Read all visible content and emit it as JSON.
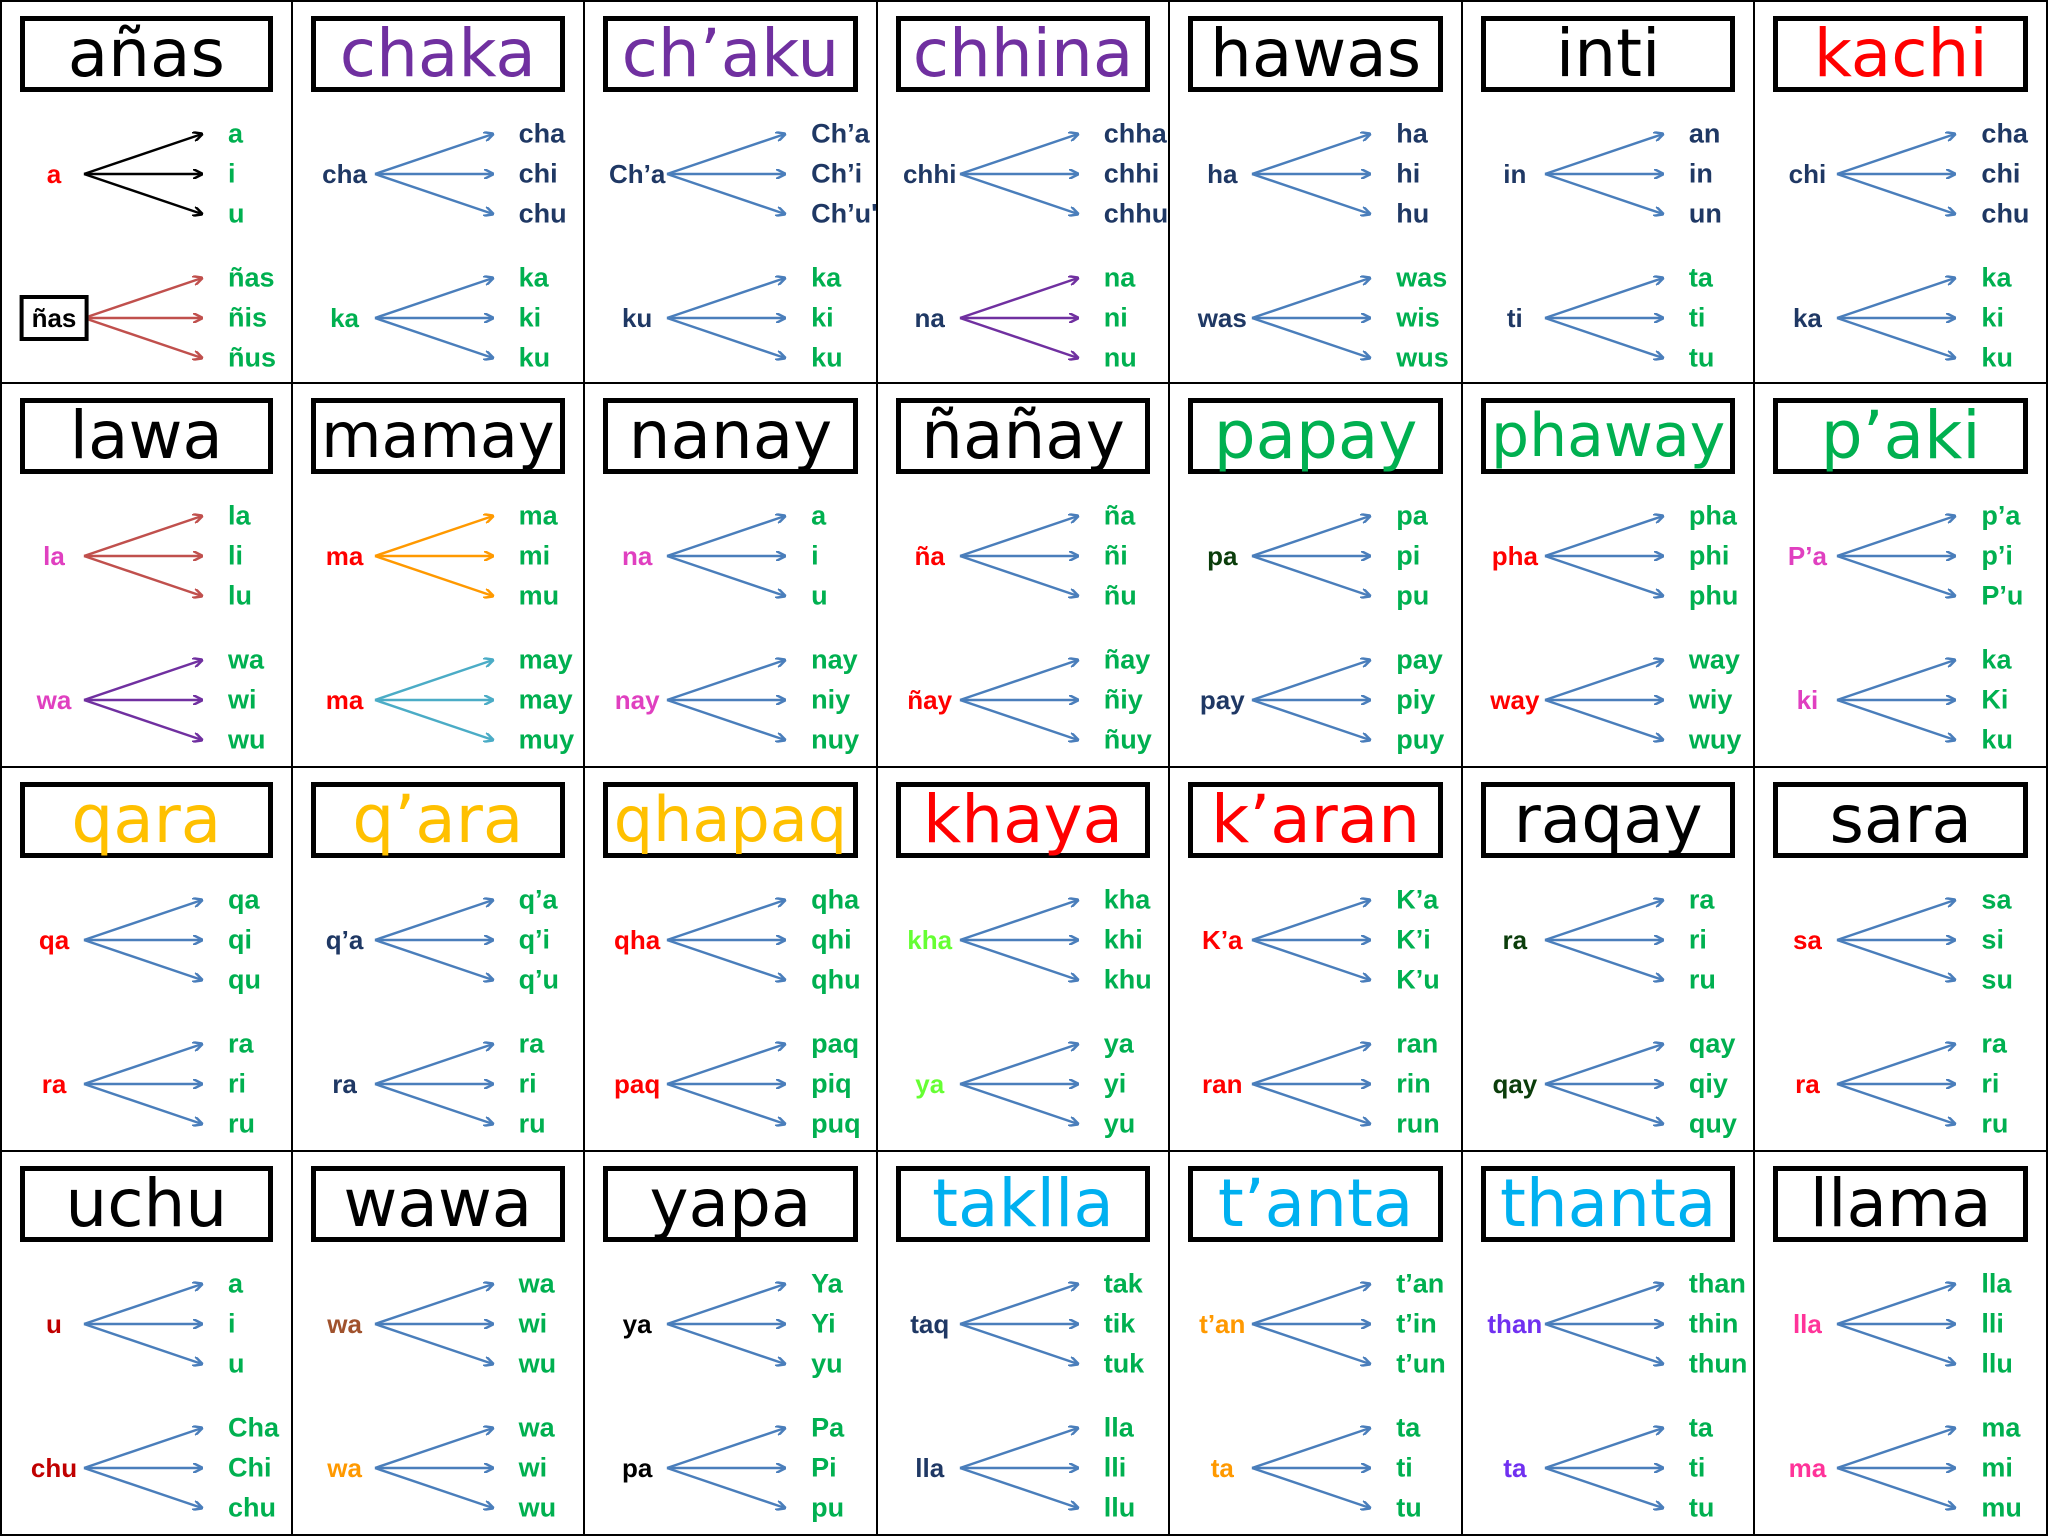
{
  "colors": {
    "black": "#000000",
    "purple": "#7030a0",
    "red": "#ff0000",
    "green": "#00b050",
    "navy": "#1f3864",
    "blue_arrow": "#4a7ebb",
    "gold": "#ffc000",
    "cyan": "#00b0f0",
    "magenta": "#e040c0",
    "dark_green": "#0b3d0b",
    "lime": "#66ff33",
    "brown": "#a0522d",
    "orange": "#ff9900",
    "violet": "#7030f0",
    "pink": "#ff3399",
    "dark_red": "#c00000"
  },
  "cards": [
    {
      "title": "añas",
      "title_color": "black",
      "groups": [
        {
          "root": "a",
          "root_color": "red",
          "arrow_color": "black",
          "syllables": [
            "a",
            "i",
            "u"
          ],
          "syl_color": "green"
        },
        {
          "root": "ñas",
          "root_color": "black",
          "root_boxed": true,
          "arrow_color": "brownred",
          "syllables": [
            "ñas",
            "ñis",
            "ñus"
          ],
          "syl_color": "green"
        }
      ]
    },
    {
      "title": "chaka",
      "title_color": "purple",
      "groups": [
        {
          "root": "cha",
          "root_color": "navy",
          "arrow_color": "blue",
          "syllables": [
            "cha",
            "chi",
            "chu"
          ],
          "syl_color": "navy"
        },
        {
          "root": "ka",
          "root_color": "green",
          "arrow_color": "blue",
          "syllables": [
            "ka",
            "ki",
            "ku"
          ],
          "syl_color": "green"
        }
      ]
    },
    {
      "title": "ch’aku",
      "title_color": "purple",
      "groups": [
        {
          "root": "Ch’a",
          "root_color": "navy",
          "arrow_color": "blue",
          "syllables": [
            "Ch’a",
            "Ch’i",
            "Ch’u'"
          ],
          "syl_color": "navy"
        },
        {
          "root": "ku",
          "root_color": "navy",
          "arrow_color": "blue",
          "syllables": [
            "ka",
            "ki",
            "ku"
          ],
          "syl_color": "green"
        }
      ]
    },
    {
      "title": "chhina",
      "title_color": "purple",
      "groups": [
        {
          "root": "chhi",
          "root_color": "navy",
          "arrow_color": "blue",
          "syllables": [
            "chha",
            "chhi",
            "chhu"
          ],
          "syl_color": "navy"
        },
        {
          "root": "na",
          "root_color": "navy",
          "arrow_color": "purple",
          "syllables": [
            "na",
            "ni",
            "nu"
          ],
          "syl_color": "green"
        }
      ]
    },
    {
      "title": "hawas",
      "title_color": "black",
      "groups": [
        {
          "root": "ha",
          "root_color": "navy",
          "arrow_color": "blue",
          "syllables": [
            "ha",
            "hi",
            "hu"
          ],
          "syl_color": "navy"
        },
        {
          "root": "was",
          "root_color": "navy",
          "arrow_color": "blue",
          "syllables": [
            "was",
            "wis",
            "wus"
          ],
          "syl_color": "green"
        }
      ]
    },
    {
      "title": "inti",
      "title_color": "black",
      "groups": [
        {
          "root": "in",
          "root_color": "navy",
          "arrow_color": "blue",
          "syllables": [
            "an",
            "in",
            "un"
          ],
          "syl_color": "navy"
        },
        {
          "root": "ti",
          "root_color": "navy",
          "arrow_color": "blue",
          "syllables": [
            "ta",
            "ti",
            "tu"
          ],
          "syl_color": "green"
        }
      ]
    },
    {
      "title": "kachi",
      "title_color": "red",
      "groups": [
        {
          "root": "chi",
          "root_color": "navy",
          "arrow_color": "blue",
          "syllables": [
            "cha",
            "chi",
            "chu"
          ],
          "syl_color": "navy"
        },
        {
          "root": "ka",
          "root_color": "navy",
          "arrow_color": "blue",
          "syllables": [
            "ka",
            "ki",
            "ku"
          ],
          "syl_color": "green"
        }
      ]
    },
    {
      "title": "lawa",
      "title_color": "black",
      "groups": [
        {
          "root": "la",
          "root_color": "magenta",
          "arrow_color": "brownred",
          "syllables": [
            "la",
            "li",
            "lu"
          ],
          "syl_color": "green"
        },
        {
          "root": "wa",
          "root_color": "magenta",
          "arrow_color": "purple",
          "syllables": [
            "wa",
            "wi",
            "wu"
          ],
          "syl_color": "green"
        }
      ]
    },
    {
      "title": "mamay",
      "title_color": "black",
      "groups": [
        {
          "root": "ma",
          "root_color": "red",
          "arrow_color": "orange",
          "syllables": [
            "ma",
            "mi",
            "mu"
          ],
          "syl_color": "green"
        },
        {
          "root": "ma",
          "root_color": "red",
          "arrow_color": "teal",
          "syllables": [
            "may",
            "may",
            "muy"
          ],
          "syl_color": "green"
        }
      ]
    },
    {
      "title": "nanay",
      "title_color": "black",
      "groups": [
        {
          "root": "na",
          "root_color": "magenta",
          "arrow_color": "blue",
          "syllables": [
            "a",
            "i",
            "u"
          ],
          "syl_color": "green"
        },
        {
          "root": "nay",
          "root_color": "magenta",
          "arrow_color": "blue",
          "syllables": [
            "nay",
            "niy",
            "nuy"
          ],
          "syl_color": "green"
        }
      ]
    },
    {
      "title": "ñañay",
      "title_color": "black",
      "groups": [
        {
          "root": "ña",
          "root_color": "red",
          "arrow_color": "blue",
          "syllables": [
            "ña",
            "ñi",
            "ñu"
          ],
          "syl_color": "green"
        },
        {
          "root": "ñay",
          "root_color": "red",
          "arrow_color": "blue",
          "syllables": [
            "ñay",
            "ñiy",
            "ñuy"
          ],
          "syl_color": "green"
        }
      ]
    },
    {
      "title": "papay",
      "title_color": "green",
      "groups": [
        {
          "root": "pa",
          "root_color": "dark_green",
          "arrow_color": "blue",
          "syllables": [
            "pa",
            "pi",
            "pu"
          ],
          "syl_color": "green"
        },
        {
          "root": "pay",
          "root_color": "navy",
          "arrow_color": "blue",
          "syllables": [
            "pay",
            "piy",
            "puy"
          ],
          "syl_color": "green"
        }
      ]
    },
    {
      "title": "phaway",
      "title_color": "green",
      "groups": [
        {
          "root": "pha",
          "root_color": "red",
          "arrow_color": "blue",
          "syllables": [
            "pha",
            "phi",
            "phu"
          ],
          "syl_color": "green"
        },
        {
          "root": "way",
          "root_color": "red",
          "arrow_color": "blue",
          "syllables": [
            "way",
            "wiy",
            "wuy"
          ],
          "syl_color": "green"
        }
      ]
    },
    {
      "title": "p’aki",
      "title_color": "green",
      "groups": [
        {
          "root": "P’a",
          "root_color": "magenta",
          "arrow_color": "blue",
          "syllables": [
            "p’a",
            "p’i",
            "P’u"
          ],
          "syl_color": "green"
        },
        {
          "root": "ki",
          "root_color": "magenta",
          "arrow_color": "blue",
          "syllables": [
            "ka",
            "Ki",
            "ku"
          ],
          "syl_color": "green"
        }
      ]
    },
    {
      "title": "qara",
      "title_color": "gold",
      "groups": [
        {
          "root": "qa",
          "root_color": "red",
          "arrow_color": "blue",
          "syllables": [
            "qa",
            "qi",
            "qu"
          ],
          "syl_color": "green"
        },
        {
          "root": "ra",
          "root_color": "red",
          "arrow_color": "blue",
          "syllables": [
            "ra",
            "ri",
            "ru"
          ],
          "syl_color": "green"
        }
      ]
    },
    {
      "title": "q’ara",
      "title_color": "gold",
      "groups": [
        {
          "root": "q’a",
          "root_color": "navy",
          "arrow_color": "blue",
          "syllables": [
            "q’a",
            "q’i",
            "q’u"
          ],
          "syl_color": "green"
        },
        {
          "root": "ra",
          "root_color": "navy",
          "arrow_color": "blue",
          "syllables": [
            "ra",
            "ri",
            "ru"
          ],
          "syl_color": "green"
        }
      ]
    },
    {
      "title": "qhapaq",
      "title_color": "gold",
      "groups": [
        {
          "root": "qha",
          "root_color": "red",
          "arrow_color": "blue",
          "syllables": [
            "qha",
            "qhi",
            "qhu"
          ],
          "syl_color": "green"
        },
        {
          "root": "paq",
          "root_color": "red",
          "arrow_color": "blue",
          "syllables": [
            "paq",
            "piq",
            "puq"
          ],
          "syl_color": "green"
        }
      ]
    },
    {
      "title": "khaya",
      "title_color": "red",
      "groups": [
        {
          "root": "kha",
          "root_color": "lime",
          "arrow_color": "blue",
          "syllables": [
            "kha",
            "khi",
            "khu"
          ],
          "syl_color": "green"
        },
        {
          "root": "ya",
          "root_color": "lime",
          "arrow_color": "blue",
          "syllables": [
            "ya",
            "yi",
            "yu"
          ],
          "syl_color": "green"
        }
      ]
    },
    {
      "title": "k’aran",
      "title_color": "red",
      "groups": [
        {
          "root": "K’a",
          "root_color": "red",
          "arrow_color": "blue",
          "syllables": [
            "K’a",
            "K’i",
            "K’u"
          ],
          "syl_color": "green"
        },
        {
          "root": "ran",
          "root_color": "red",
          "arrow_color": "blue",
          "syllables": [
            "ran",
            "rin",
            "run"
          ],
          "syl_color": "green"
        }
      ]
    },
    {
      "title": "raqay",
      "title_color": "black",
      "groups": [
        {
          "root": "ra",
          "root_color": "dark_green",
          "arrow_color": "blue",
          "syllables": [
            "ra",
            "ri",
            "ru"
          ],
          "syl_color": "green"
        },
        {
          "root": "qay",
          "root_color": "dark_green",
          "arrow_color": "blue",
          "syllables": [
            "qay",
            "qiy",
            "quy"
          ],
          "syl_color": "green"
        }
      ]
    },
    {
      "title": "sara",
      "title_color": "black",
      "groups": [
        {
          "root": "sa",
          "root_color": "red",
          "arrow_color": "blue",
          "syllables": [
            "sa",
            "si",
            "su"
          ],
          "syl_color": "green"
        },
        {
          "root": "ra",
          "root_color": "red",
          "arrow_color": "blue",
          "syllables": [
            "ra",
            "ri",
            "ru"
          ],
          "syl_color": "green"
        }
      ]
    },
    {
      "title": "uchu",
      "title_color": "black",
      "groups": [
        {
          "root": "u",
          "root_color": "dark_red",
          "arrow_color": "blue",
          "syllables": [
            "a",
            "i",
            "u"
          ],
          "syl_color": "green"
        },
        {
          "root": "chu",
          "root_color": "dark_red",
          "arrow_color": "blue",
          "syllables": [
            "Cha",
            "Chi",
            "chu"
          ],
          "syl_color": "green"
        }
      ]
    },
    {
      "title": "wawa",
      "title_color": "black",
      "groups": [
        {
          "root": "wa",
          "root_color": "brown",
          "arrow_color": "blue",
          "syllables": [
            "wa",
            "wi",
            "wu"
          ],
          "syl_color": "green"
        },
        {
          "root": "wa",
          "root_color": "orange",
          "arrow_color": "blue",
          "syllables": [
            "wa",
            "wi",
            "wu"
          ],
          "syl_color": "green"
        }
      ]
    },
    {
      "title": "yapa",
      "title_color": "black",
      "groups": [
        {
          "root": "ya",
          "root_color": "black",
          "arrow_color": "blue",
          "syllables": [
            "Ya",
            "Yi",
            "yu"
          ],
          "syl_color": "green"
        },
        {
          "root": "pa",
          "root_color": "black",
          "arrow_color": "blue",
          "syllables": [
            "Pa",
            "Pi",
            "pu"
          ],
          "syl_color": "green"
        }
      ]
    },
    {
      "title": "taklla",
      "title_color": "cyan",
      "groups": [
        {
          "root": "taq",
          "root_color": "navy",
          "arrow_color": "blue",
          "syllables": [
            "tak",
            "tik",
            "tuk"
          ],
          "syl_color": "green"
        },
        {
          "root": "lla",
          "root_color": "navy",
          "arrow_color": "blue",
          "syllables": [
            "lla",
            "lli",
            "llu"
          ],
          "syl_color": "green"
        }
      ]
    },
    {
      "title": "t’anta",
      "title_color": "cyan",
      "groups": [
        {
          "root": "t’an",
          "root_color": "orange",
          "arrow_color": "blue",
          "syllables": [
            "t’an",
            "t’in",
            "t’un"
          ],
          "syl_color": "green"
        },
        {
          "root": "ta",
          "root_color": "orange",
          "arrow_color": "blue",
          "syllables": [
            "ta",
            "ti",
            "tu"
          ],
          "syl_color": "green"
        }
      ]
    },
    {
      "title": "thanta",
      "title_color": "cyan",
      "groups": [
        {
          "root": "than",
          "root_color": "violet",
          "arrow_color": "blue",
          "syllables": [
            "than",
            "thin",
            "thun"
          ],
          "syl_color": "green"
        },
        {
          "root": "ta",
          "root_color": "violet",
          "arrow_color": "blue",
          "syllables": [
            "ta",
            "ti",
            "tu"
          ],
          "syl_color": "green"
        }
      ]
    },
    {
      "title": "llama",
      "title_color": "black",
      "groups": [
        {
          "root": "lla",
          "root_color": "pink",
          "arrow_color": "blue",
          "syllables": [
            "lla",
            "lli",
            "llu"
          ],
          "syl_color": "green"
        },
        {
          "root": "ma",
          "root_color": "pink",
          "arrow_color": "blue",
          "syllables": [
            "ma",
            "mi",
            "mu"
          ],
          "syl_color": "green"
        }
      ]
    }
  ]
}
